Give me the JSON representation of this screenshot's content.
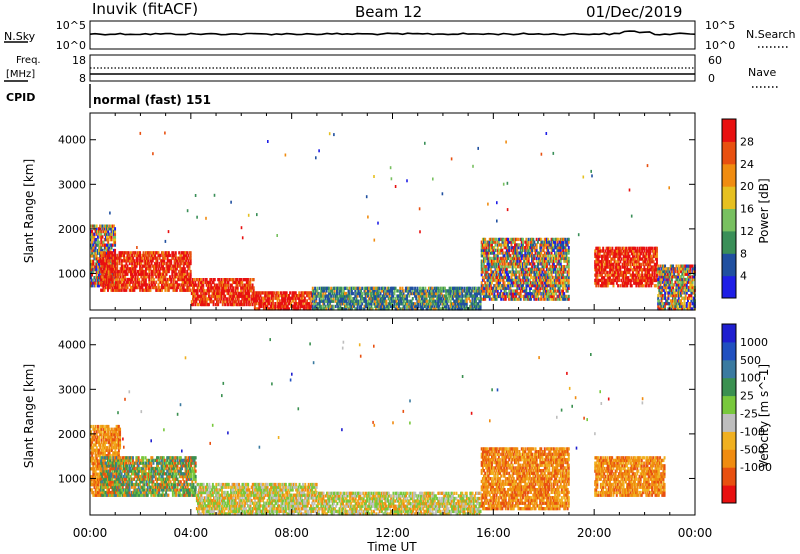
{
  "header": {
    "station": "Inuvik (fitACF)",
    "beam": "Beam 12",
    "date": "01/Dec/2019"
  },
  "top_panels": {
    "nsky_label": "N.Sky",
    "nsky_ticks": [
      "10^5",
      "10^0"
    ],
    "nsearch_label": "N.Search",
    "nsearch_ticks": [
      "10^5",
      "10^0"
    ],
    "freq_label": "Freq.",
    "freq_unit": "[MHz]",
    "freq_ticks": [
      "18",
      "8"
    ],
    "nave_label": "Nave",
    "nave_ticks": [
      "60",
      "0"
    ],
    "cpid_label": "CPID",
    "cpid_text": "normal (fast) 151"
  },
  "colors": {
    "power": [
      "#1f1fe6",
      "#2050a0",
      "#3a8f58",
      "#78c060",
      "#e6c020",
      "#f08c10",
      "#e85010",
      "#e81010"
    ],
    "velocity": [
      "#e81010",
      "#e85010",
      "#f08c10",
      "#f0b020",
      "#bebebe",
      "#78c83c",
      "#3a9050",
      "#3a7aa0",
      "#2050c0",
      "#1f1fd0"
    ]
  },
  "chart_data": [
    {
      "type": "heatmap",
      "name": "power-panel",
      "ylabel": "Slant Range [km]",
      "xlabel": "",
      "y_ticks": [
        "4000",
        "3000",
        "2000",
        "1000"
      ],
      "y_tick_values": [
        4000,
        3000,
        2000,
        1000
      ],
      "ylim": [
        180,
        4600
      ],
      "xlim": [
        0,
        24
      ],
      "colorbar_label": "Power [dB]",
      "colorbar_ticks": [
        "28",
        "24",
        "20",
        "16",
        "12",
        "8",
        "4"
      ],
      "colorbar_range": [
        0,
        30
      ],
      "echo_regions": [
        {
          "t": [
            0.0,
            1.0
          ],
          "r": [
            700,
            2100
          ],
          "level": "mixed"
        },
        {
          "t": [
            0.4,
            4.0
          ],
          "r": [
            600,
            1500
          ],
          "level": "high"
        },
        {
          "t": [
            4.0,
            6.5
          ],
          "r": [
            280,
            900
          ],
          "level": "high"
        },
        {
          "t": [
            6.5,
            8.8
          ],
          "r": [
            180,
            600
          ],
          "level": "high"
        },
        {
          "t": [
            8.8,
            15.5
          ],
          "r": [
            180,
            700
          ],
          "level": "low"
        },
        {
          "t": [
            15.5,
            19.0
          ],
          "r": [
            400,
            1800
          ],
          "level": "mixed"
        },
        {
          "t": [
            20.0,
            22.5
          ],
          "r": [
            700,
            1600
          ],
          "level": "high"
        },
        {
          "t": [
            22.5,
            24.0
          ],
          "r": [
            180,
            1200
          ],
          "level": "mixed"
        }
      ]
    },
    {
      "type": "heatmap",
      "name": "velocity-panel",
      "ylabel": "Slant Range [km]",
      "xlabel": "Time UT",
      "x_ticks": [
        "00:00",
        "04:00",
        "08:00",
        "12:00",
        "16:00",
        "20:00",
        "00:00"
      ],
      "y_ticks": [
        "4000",
        "3000",
        "2000",
        "1000"
      ],
      "y_tick_values": [
        4000,
        3000,
        2000,
        1000
      ],
      "ylim": [
        180,
        4600
      ],
      "xlim": [
        0,
        24
      ],
      "colorbar_label": "Velocity [m s^-1]",
      "colorbar_ticks": [
        "1000",
        "500",
        "100",
        "25",
        "-25",
        "-100",
        "-500",
        "-1000"
      ],
      "echo_regions": [
        {
          "t": [
            0.0,
            1.2
          ],
          "r": [
            600,
            2200
          ],
          "level": "negative"
        },
        {
          "t": [
            0.4,
            4.2
          ],
          "r": [
            600,
            1500
          ],
          "level": "mixed"
        },
        {
          "t": [
            4.2,
            9.0
          ],
          "r": [
            180,
            900
          ],
          "level": "positive"
        },
        {
          "t": [
            9.0,
            15.5
          ],
          "r": [
            180,
            700
          ],
          "level": "positive"
        },
        {
          "t": [
            15.5,
            19.0
          ],
          "r": [
            300,
            1700
          ],
          "level": "negative"
        },
        {
          "t": [
            20.0,
            22.8
          ],
          "r": [
            600,
            1500
          ],
          "level": "negative"
        }
      ]
    }
  ]
}
